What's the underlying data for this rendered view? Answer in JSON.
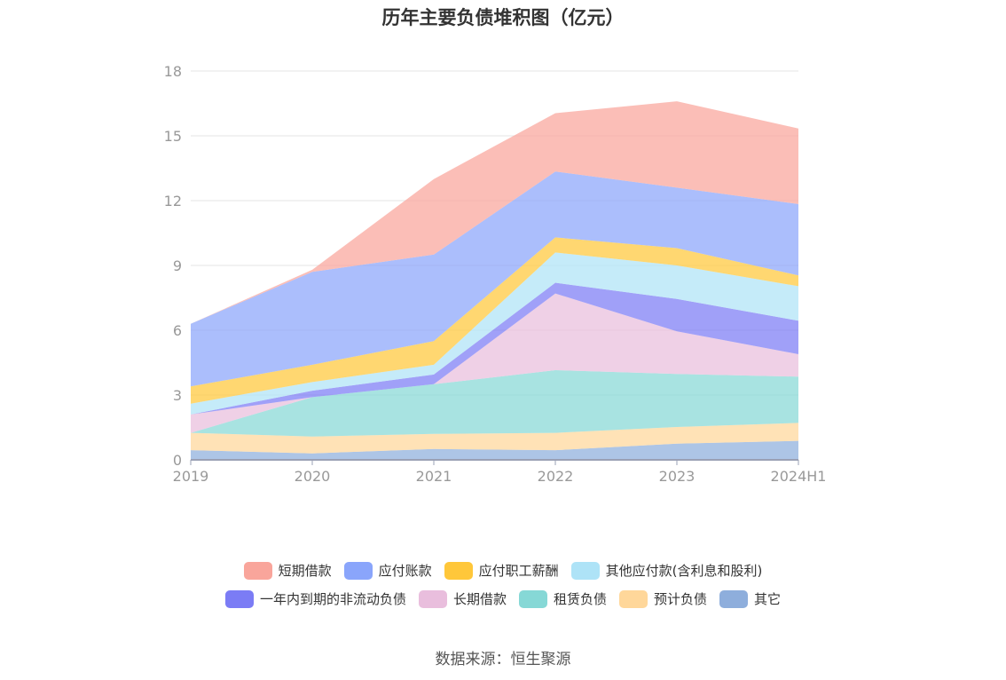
{
  "chart_data": {
    "type": "area",
    "stacked": true,
    "title": "历年主要负债堆积图（亿元）",
    "categories": [
      "2019",
      "2020",
      "2021",
      "2022",
      "2023",
      "2024H1"
    ],
    "ylim": [
      0,
      18
    ],
    "yticks": [
      "0",
      "3",
      "6",
      "9",
      "12",
      "15",
      "18"
    ],
    "grid": true,
    "legend_position": "bottom",
    "series": [
      {
        "name": "其它",
        "color": "#8eaedc",
        "values": [
          0.45,
          0.3,
          0.5,
          0.45,
          0.75,
          0.88
        ]
      },
      {
        "name": "预计负债",
        "color": "#ffd79a",
        "values": [
          0.8,
          0.78,
          0.7,
          0.8,
          0.77,
          0.83
        ]
      },
      {
        "name": "租赁负债",
        "color": "#86d8d6",
        "values": [
          0.0,
          1.82,
          2.3,
          2.9,
          2.46,
          2.14
        ]
      },
      {
        "name": "长期借款",
        "color": "#e9bedd",
        "values": [
          0.85,
          0.0,
          0.0,
          3.55,
          1.97,
          1.04
        ]
      },
      {
        "name": "一年内到期的非流动负债",
        "color": "#7b7cf5",
        "values": [
          0.0,
          0.3,
          0.45,
          0.5,
          1.5,
          1.55
        ]
      },
      {
        "name": "其他应付款(含利息和股利)",
        "color": "#aee3f7",
        "values": [
          0.5,
          0.4,
          0.45,
          1.4,
          1.55,
          1.6
        ]
      },
      {
        "name": "应付职工薪酬",
        "color": "#ffc73a",
        "values": [
          0.8,
          0.8,
          1.1,
          0.7,
          0.8,
          0.5
        ]
      },
      {
        "name": "应付账款",
        "color": "#8aa5fb",
        "values": [
          2.9,
          4.3,
          4.0,
          3.05,
          2.8,
          3.3
        ]
      },
      {
        "name": "短期借款",
        "color": "#f9a59b",
        "values": [
          0.0,
          0.1,
          3.5,
          2.7,
          4.0,
          3.5
        ]
      }
    ],
    "legend_rows": [
      [
        "短期借款",
        "应付账款",
        "应付职工薪酬",
        "其他应付款(含利息和股利)"
      ],
      [
        "一年内到期的非流动负债",
        "长期借款",
        "租赁负债",
        "预计负债",
        "其它"
      ]
    ]
  },
  "source": "数据来源：恒生聚源"
}
